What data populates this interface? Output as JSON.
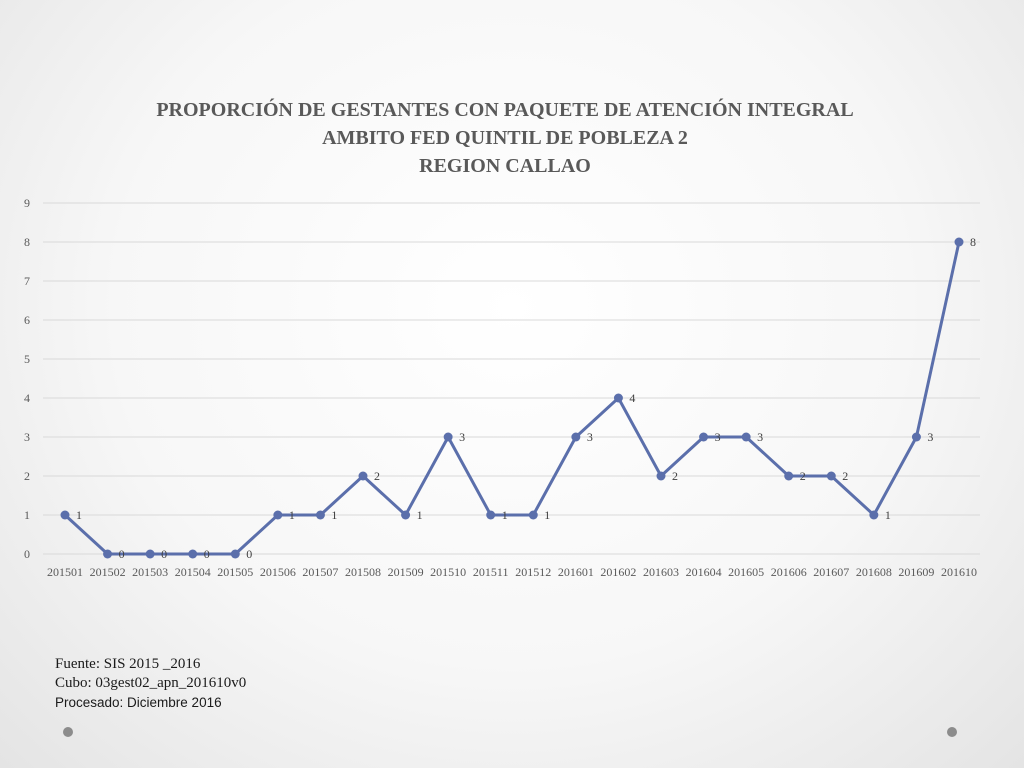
{
  "chart_data": {
    "type": "line",
    "title": [
      "PROPORCIÓN DE GESTANTES CON PAQUETE DE ATENCIÓN INTEGRAL",
      "AMBITO FED QUINTIL DE POBLEZA 2",
      "REGION CALLAO"
    ],
    "categories": [
      "201501",
      "201502",
      "201503",
      "201504",
      "201505",
      "201506",
      "201507",
      "201508",
      "201509",
      "201510",
      "201511",
      "201512",
      "201601",
      "201602",
      "201603",
      "201604",
      "201605",
      "201606",
      "201607",
      "201608",
      "201609",
      "201610"
    ],
    "series": [
      {
        "values": [
          1,
          0,
          0,
          0,
          0,
          1,
          1,
          2,
          1,
          3,
          1,
          1,
          3,
          4,
          2,
          3,
          3,
          2,
          2,
          1,
          3,
          8
        ]
      }
    ],
    "ylim": [
      0,
      9
    ],
    "yticks": [
      0,
      1,
      2,
      3,
      4,
      5,
      6,
      7,
      8,
      9
    ],
    "grid": true,
    "data_labels": true,
    "line_color": "#5b6fab"
  },
  "footer": {
    "source": "Fuente: SIS 2015 _2016",
    "cube": "Cubo: 03gest02_apn_201610v0",
    "processed": "Procesado: Diciembre 2016"
  }
}
